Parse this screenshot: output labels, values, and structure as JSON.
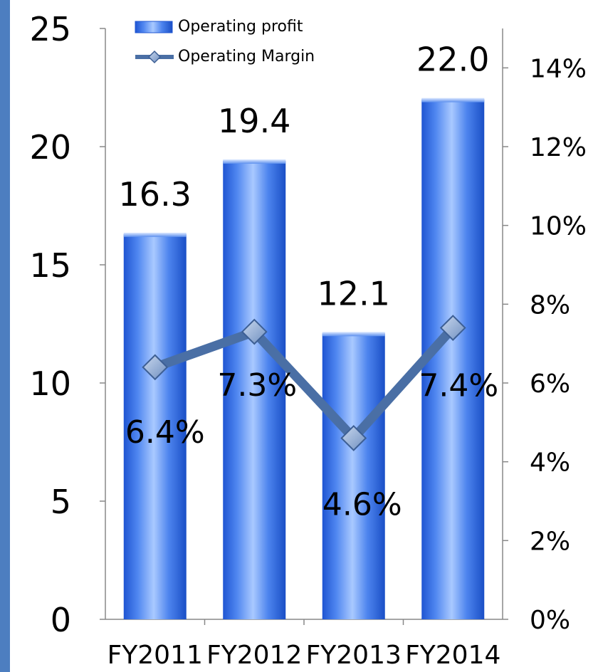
{
  "chart_data": {
    "type": "bar",
    "categories": [
      "FY2011",
      "FY2012",
      "FY2013",
      "FY2014"
    ],
    "series": [
      {
        "name": "Operating profit",
        "type": "bar",
        "axis": "left",
        "values": [
          16.3,
          19.4,
          12.1,
          22.0
        ],
        "labels": [
          "16.3",
          "19.4",
          "12.1",
          "22.0"
        ],
        "color": "#2f6fe0"
      },
      {
        "name": "Operating Margin",
        "type": "line",
        "axis": "right",
        "values": [
          6.4,
          7.3,
          4.6,
          7.4
        ],
        "labels": [
          "6.4%",
          "7.3%",
          "4.6%",
          "7.4%"
        ],
        "color": "#4a6fa5"
      }
    ],
    "left_axis": {
      "ylim": [
        0,
        25
      ],
      "ticks": [
        "0",
        "5",
        "10",
        "15",
        "20",
        "25"
      ]
    },
    "right_axis": {
      "ylim": [
        0,
        15
      ],
      "ticks": [
        "0%",
        "2%",
        "4%",
        "6%",
        "8%",
        "10%",
        "12%",
        "14%"
      ]
    },
    "legend": "top-left",
    "grid": false,
    "colors": {
      "left_band": "#4d7ec0",
      "axis_line": "#888888"
    }
  }
}
